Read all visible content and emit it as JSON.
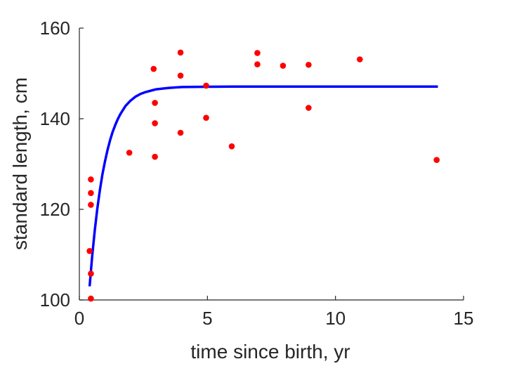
{
  "chart_data": {
    "type": "scatter",
    "title": "",
    "xlabel": "time since birth, yr",
    "ylabel": "standard length, cm",
    "xlim": [
      0,
      15
    ],
    "ylim": [
      100,
      160
    ],
    "xticks": [
      0,
      5,
      10,
      15
    ],
    "yticks": [
      100,
      120,
      140,
      160
    ],
    "xtick_labels": [
      "0",
      "5",
      "10",
      "15"
    ],
    "ytick_labels": [
      "100",
      "120",
      "140",
      "160"
    ],
    "grid": false,
    "legend": "none",
    "series": [
      {
        "kind": "scatter",
        "color": "#ff0000",
        "points": [
          {
            "x": 0.45,
            "y": 100.3
          },
          {
            "x": 0.45,
            "y": 105.8
          },
          {
            "x": 0.4,
            "y": 110.8
          },
          {
            "x": 0.45,
            "y": 121.0
          },
          {
            "x": 0.45,
            "y": 123.6
          },
          {
            "x": 0.45,
            "y": 126.6
          },
          {
            "x": 1.95,
            "y": 132.5
          },
          {
            "x": 2.95,
            "y": 131.6
          },
          {
            "x": 2.95,
            "y": 139.0
          },
          {
            "x": 2.95,
            "y": 143.5
          },
          {
            "x": 2.9,
            "y": 151.0
          },
          {
            "x": 3.95,
            "y": 136.9
          },
          {
            "x": 3.95,
            "y": 149.5
          },
          {
            "x": 3.95,
            "y": 154.6
          },
          {
            "x": 4.95,
            "y": 140.2
          },
          {
            "x": 4.95,
            "y": 147.3
          },
          {
            "x": 5.95,
            "y": 133.9
          },
          {
            "x": 6.95,
            "y": 152.0
          },
          {
            "x": 6.95,
            "y": 154.5
          },
          {
            "x": 7.95,
            "y": 151.7
          },
          {
            "x": 8.95,
            "y": 151.9
          },
          {
            "x": 8.95,
            "y": 142.4
          },
          {
            "x": 10.95,
            "y": 153.1
          },
          {
            "x": 13.95,
            "y": 130.9
          }
        ]
      },
      {
        "kind": "line",
        "color": "#0000ff",
        "x": [
          0.4,
          0.5,
          0.6,
          0.7,
          0.8,
          0.9,
          1.0,
          1.1,
          1.2,
          1.3,
          1.4,
          1.5,
          1.6,
          1.8,
          2.0,
          2.2,
          2.4,
          2.6,
          2.8,
          3.0,
          3.5,
          4.0,
          5.0,
          6.0,
          8.0,
          10.0,
          12.0,
          14.0
        ],
        "y": [
          103.0,
          109.6,
          115.3,
          120.1,
          124.2,
          127.7,
          130.6,
          133.1,
          135.3,
          137.1,
          138.6,
          139.9,
          141.0,
          142.8,
          144.0,
          144.9,
          145.5,
          145.9,
          146.2,
          146.5,
          146.8,
          147.0,
          147.05,
          147.1,
          147.1,
          147.1,
          147.1,
          147.1
        ]
      }
    ]
  }
}
